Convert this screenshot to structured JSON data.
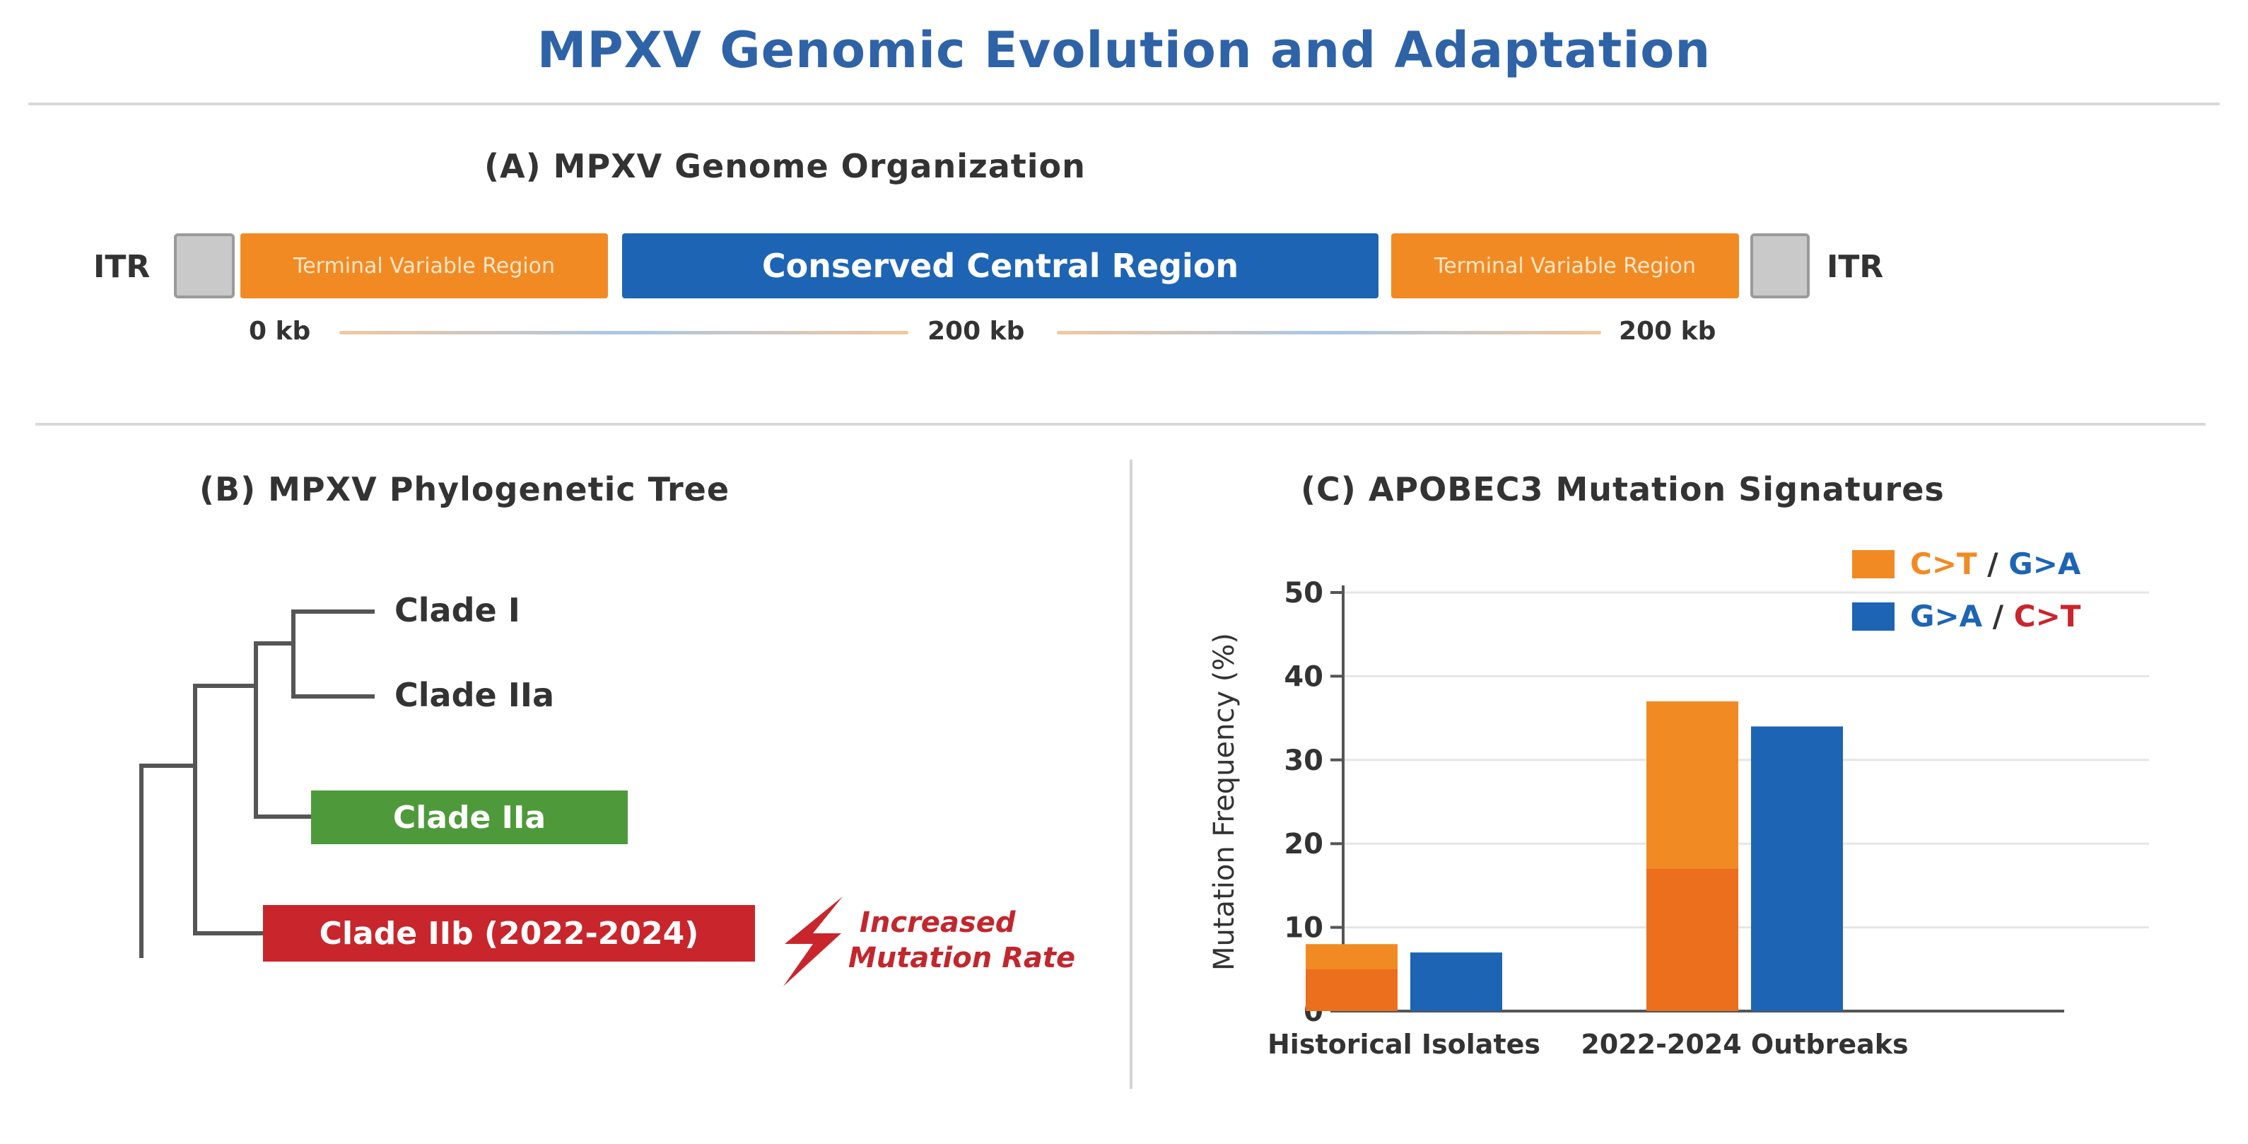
{
  "title": "MPXV Genomic Evolution and Adaptation",
  "genome": {
    "title": "(A) MPXV Genome Organization",
    "itr_left": "ITR",
    "itr_right": "ITR",
    "left_region": "Terminal Variable Region",
    "center_region": "Conserved Central Region",
    "right_region": "Terminal Variable Region",
    "scale_start": "0 kb",
    "scale_mid": "200 kb",
    "scale_end": "200 kb"
  },
  "tree": {
    "title": "(B) MPXV Phylogenetic Tree",
    "clade1": "Clade I",
    "clade2": "Clade IIa",
    "clade3": "Clade IIa",
    "clade4": "Clade IIb (2022-2024)",
    "annotation_line1": "Increased",
    "annotation_line2": "Mutation Rate"
  },
  "colors": {
    "orange": "#f28a24",
    "blue": "#1d64b5",
    "green": "#4e9a3a",
    "red": "#c8262c"
  },
  "chart_data": {
    "type": "bar",
    "title": "(C) APOBEC3 Mutation Signatures",
    "ylabel": "Mutation Frequency (%)",
    "xlabel": "",
    "ylim": [
      0,
      50
    ],
    "yticks": [
      "0",
      "10",
      "20",
      "30",
      "40",
      "50"
    ],
    "categories": [
      "Historical Isolates",
      "2022-2024 Outbreaks"
    ],
    "series": [
      {
        "name": "C>T / G>A",
        "values": [
          8,
          37
        ],
        "inner_values": [
          5,
          17
        ],
        "color": "#f28a24"
      },
      {
        "name": "G>A / C>T",
        "values": [
          7,
          34
        ],
        "color": "#1d64b5"
      }
    ],
    "legend": [
      {
        "part1": "C>T",
        "sep": " / ",
        "part2": "G>A",
        "part1_color": "#f28a24",
        "part2_color": "#1d64b5"
      },
      {
        "part1": "G>A",
        "sep": " / ",
        "part2": "C>T",
        "part1_color": "#1d64b5",
        "part2_color": "#c8262c"
      }
    ],
    "legend_position": "top-right",
    "grid": true
  }
}
